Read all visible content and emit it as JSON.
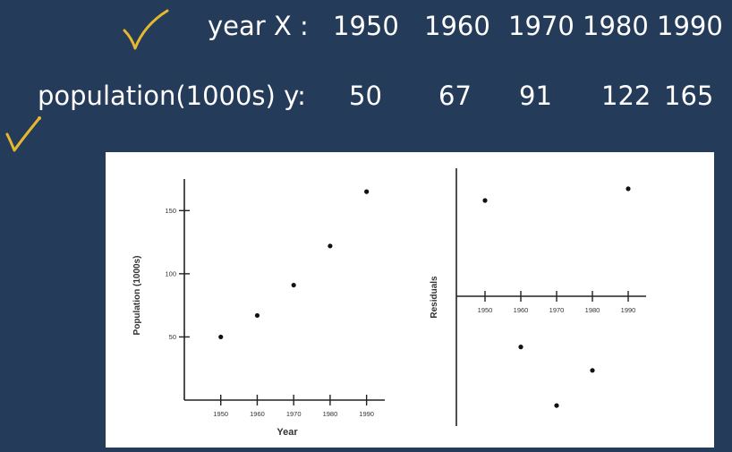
{
  "header": {
    "x_label": "year  X :",
    "x_values": [
      "1950",
      "1960",
      "1970",
      "1980",
      "1990"
    ],
    "y_label": "population(1000s) y:",
    "y_values": [
      "50",
      "67",
      "91",
      "122",
      "165"
    ],
    "check_color": "#e6b830"
  },
  "chart_data": [
    {
      "type": "scatter",
      "title": "",
      "xlabel": "Year",
      "ylabel": "Population (1000s)",
      "x": [
        1950,
        1960,
        1970,
        1980,
        1990
      ],
      "y": [
        50,
        67,
        91,
        122,
        165
      ],
      "xlim": [
        1940,
        1995
      ],
      "ylim": [
        0,
        175
      ],
      "xticks": [
        "1950",
        "1960",
        "1970",
        "1980",
        "1990"
      ],
      "yticks": [
        "50",
        "100",
        "150"
      ],
      "grid": false
    },
    {
      "type": "scatter",
      "title": "",
      "xlabel": "",
      "ylabel": "Residuals",
      "x": [
        1950,
        1960,
        1970,
        1980,
        1990
      ],
      "y": [
        3.4,
        -1.6,
        -3.6,
        -2.4,
        3.8
      ],
      "xlim": [
        1942,
        1995
      ],
      "ylim": [
        -4.3,
        4.5
      ],
      "xticks": [
        "1950",
        "1960",
        "1970",
        "1980",
        "1990"
      ],
      "grid": false
    }
  ]
}
